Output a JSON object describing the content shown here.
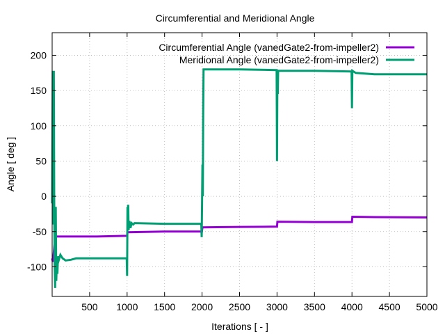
{
  "chart_data": {
    "type": "line",
    "title": "Circumferential and Meridional Angle",
    "xlabel": "Iterations [ - ]",
    "ylabel": "Angle [ deg ]",
    "xlim": [
      0,
      5000
    ],
    "ylim": [
      -142,
      232
    ],
    "xticks": [
      500,
      1000,
      1500,
      2000,
      2500,
      3000,
      3500,
      4000,
      4500,
      5000
    ],
    "yticks": [
      -100,
      -50,
      0,
      50,
      100,
      150,
      200
    ],
    "grid": true,
    "legend_position": "top-right",
    "series": [
      {
        "name": "Circumferential Angle (vanedGate2-from-impeller2)",
        "color": "#9400d3",
        "points": [
          [
            0,
            -88
          ],
          [
            10,
            -93
          ],
          [
            20,
            -82
          ],
          [
            30,
            -70
          ],
          [
            45,
            -57
          ],
          [
            300,
            -57
          ],
          [
            600,
            -57
          ],
          [
            1000,
            -56
          ],
          [
            1005,
            -51
          ],
          [
            1500,
            -50
          ],
          [
            1998,
            -50
          ],
          [
            2005,
            -44
          ],
          [
            2500,
            -43.5
          ],
          [
            3000,
            -43
          ],
          [
            3005,
            -36
          ],
          [
            3500,
            -36.5
          ],
          [
            4000,
            -36.5
          ],
          [
            4005,
            -29
          ],
          [
            4300,
            -29.5
          ],
          [
            5000,
            -30
          ]
        ]
      },
      {
        "name": "Meridional Angle (vanedGate2-from-impeller2)",
        "color": "#009e73",
        "points": [
          [
            0,
            -10
          ],
          [
            8,
            178
          ],
          [
            15,
            -40
          ],
          [
            22,
            178
          ],
          [
            28,
            -20
          ],
          [
            34,
            -100
          ],
          [
            40,
            -130
          ],
          [
            48,
            -15
          ],
          [
            55,
            -120
          ],
          [
            62,
            -95
          ],
          [
            70,
            -110
          ],
          [
            78,
            -85
          ],
          [
            90,
            -90
          ],
          [
            110,
            -83
          ],
          [
            140,
            -88
          ],
          [
            180,
            -91
          ],
          [
            250,
            -90
          ],
          [
            320,
            -88
          ],
          [
            600,
            -88
          ],
          [
            995,
            -88
          ],
          [
            1000,
            -113
          ],
          [
            1005,
            -15
          ],
          [
            1010,
            -25
          ],
          [
            1015,
            -12
          ],
          [
            1020,
            -48
          ],
          [
            1030,
            -35
          ],
          [
            1045,
            -45
          ],
          [
            1060,
            -38
          ],
          [
            1080,
            -40
          ],
          [
            1100,
            -38
          ],
          [
            1500,
            -39
          ],
          [
            1990,
            -39
          ],
          [
            1995,
            -58
          ],
          [
            2000,
            -10
          ],
          [
            2005,
            45
          ],
          [
            2010,
            0
          ],
          [
            2015,
            115
          ],
          [
            2020,
            180
          ],
          [
            2500,
            180
          ],
          [
            2995,
            179
          ],
          [
            3000,
            50
          ],
          [
            3005,
            178
          ],
          [
            3010,
            145
          ],
          [
            3015,
            178
          ],
          [
            3500,
            178
          ],
          [
            3995,
            177
          ],
          [
            4000,
            125
          ],
          [
            4005,
            178
          ],
          [
            4050,
            175
          ],
          [
            4300,
            173
          ],
          [
            5000,
            173
          ]
        ]
      }
    ]
  }
}
